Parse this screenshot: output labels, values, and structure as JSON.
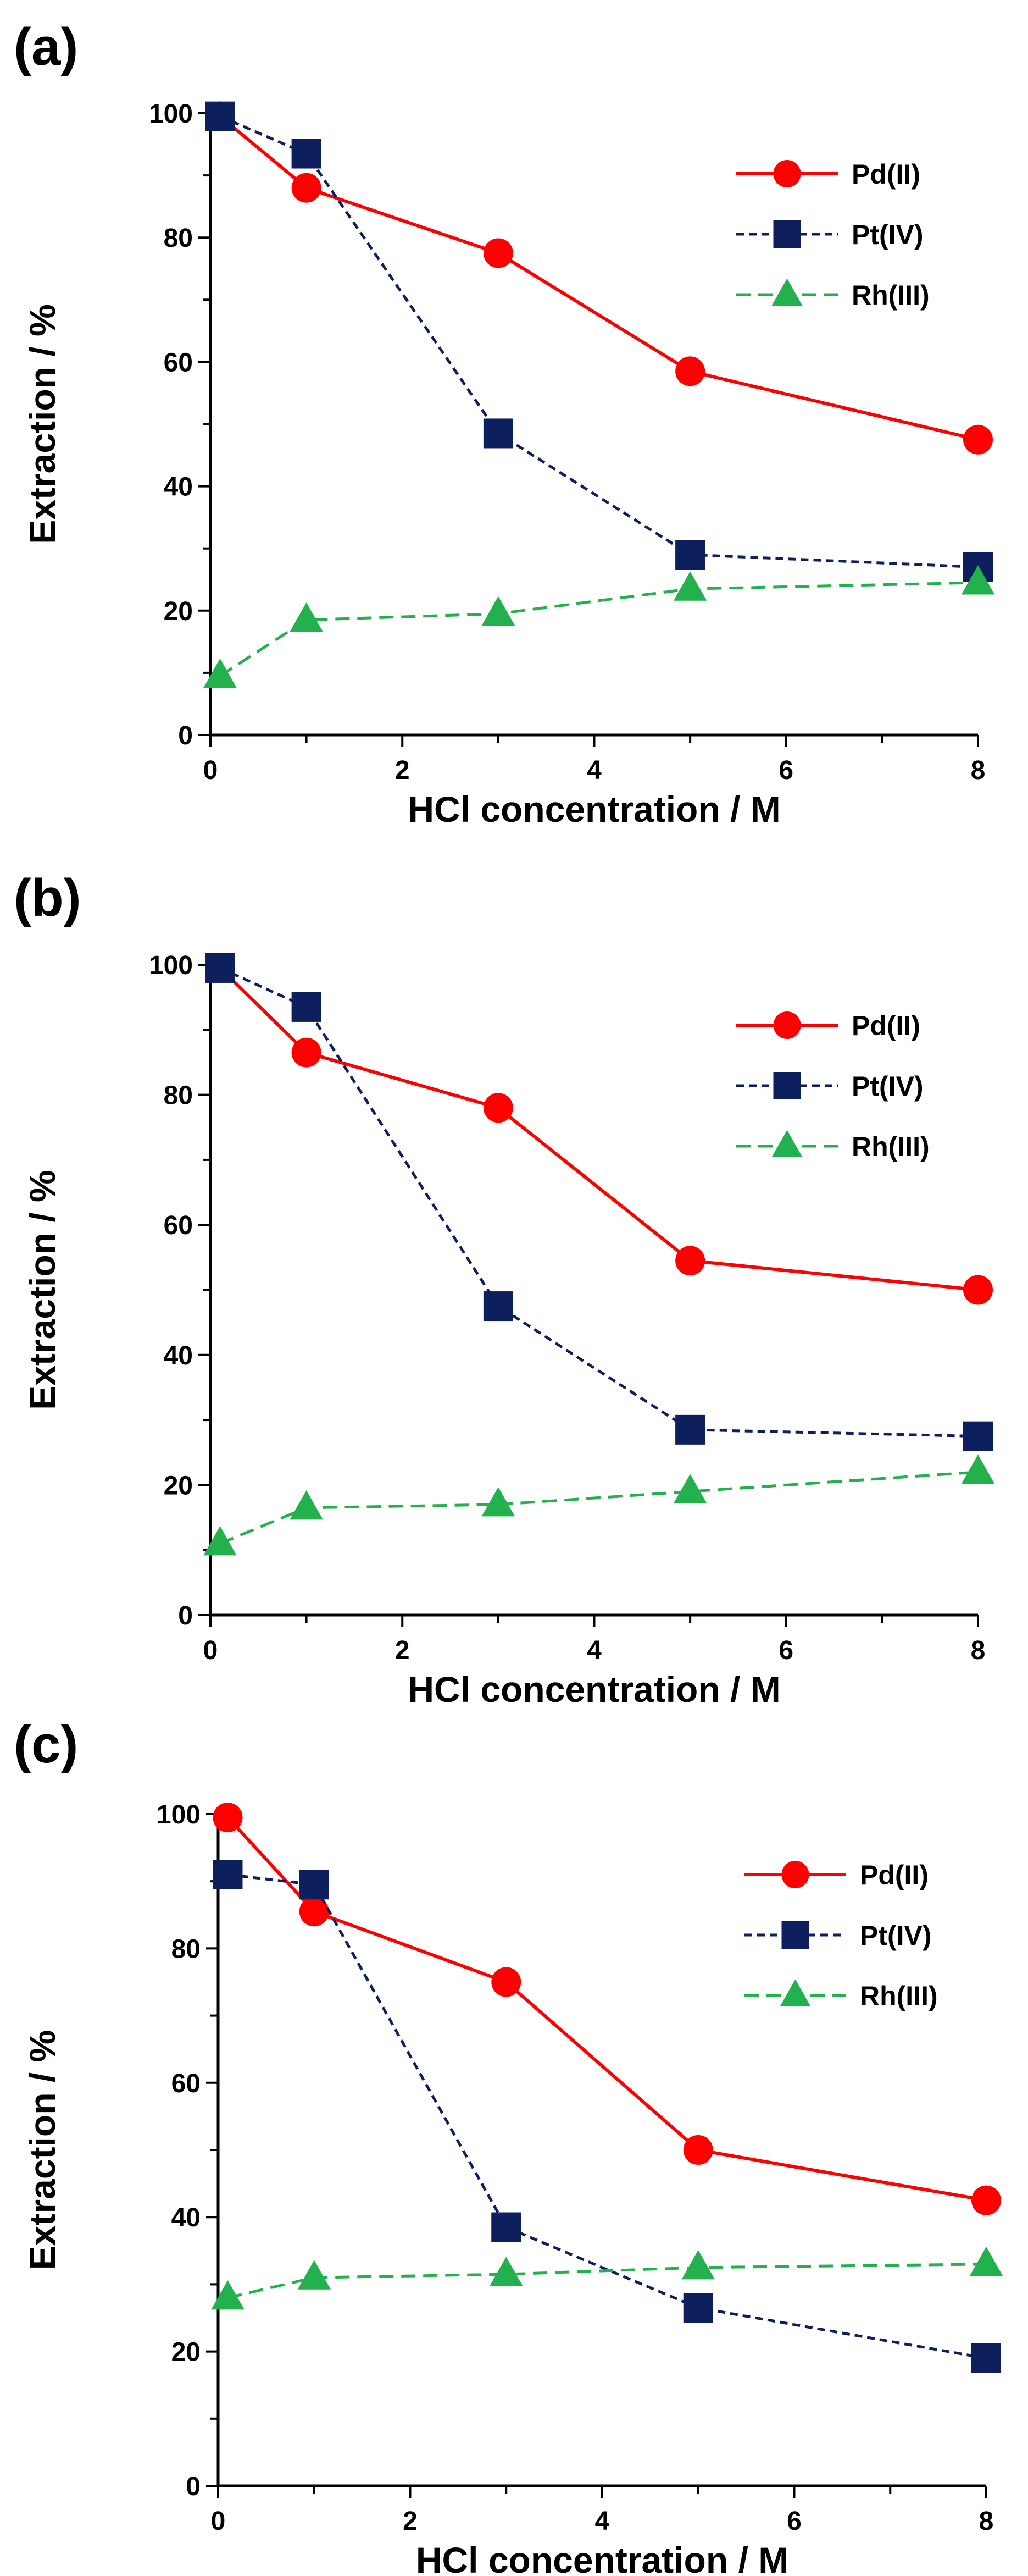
{
  "chart_data": [
    {
      "type": "line",
      "panel_label": "(a)",
      "xlabel": "HCl concentration / M",
      "ylabel": "Extraction / %",
      "xlim": [
        0,
        8
      ],
      "ylim": [
        0,
        100
      ],
      "xticks": [
        "0",
        "2",
        "4",
        "6",
        "8"
      ],
      "yticks": [
        "0",
        "20",
        "40",
        "60",
        "80",
        "100"
      ],
      "legend_position": "top-right",
      "x": [
        0.1,
        1,
        3,
        5,
        8
      ],
      "series": [
        {
          "name": "Pd(II)",
          "values": [
            99.5,
            88,
            77.5,
            58.5,
            47.5
          ],
          "color": "#ff0000",
          "marker": "circle",
          "dash": "solid"
        },
        {
          "name": "Pt(IV)",
          "values": [
            99.5,
            93.5,
            48.5,
            29,
            27
          ],
          "color": "#0d1f5c",
          "marker": "square",
          "dash": "dotted"
        },
        {
          "name": "Rh(III)",
          "values": [
            9.5,
            18.5,
            19.5,
            23.5,
            24.5
          ],
          "color": "#22b14c",
          "marker": "triangle",
          "dash": "dashed"
        }
      ]
    },
    {
      "type": "line",
      "panel_label": "(b)",
      "xlabel": "HCl concentration / M",
      "ylabel": "Extraction / %",
      "xlim": [
        0,
        8
      ],
      "ylim": [
        0,
        100
      ],
      "xticks": [
        "0",
        "2",
        "4",
        "6",
        "8"
      ],
      "yticks": [
        "0",
        "20",
        "40",
        "60",
        "80",
        "100"
      ],
      "legend_position": "top-right",
      "x": [
        0.1,
        1,
        3,
        5,
        8
      ],
      "series": [
        {
          "name": "Pd(II)",
          "values": [
            99.5,
            86.5,
            78,
            54.5,
            50
          ],
          "color": "#ff0000",
          "marker": "circle",
          "dash": "solid"
        },
        {
          "name": "Pt(IV)",
          "values": [
            99.5,
            93.5,
            47.5,
            28.5,
            27.5
          ],
          "color": "#0d1f5c",
          "marker": "square",
          "dash": "dotted"
        },
        {
          "name": "Rh(III)",
          "values": [
            11,
            16.5,
            17,
            19,
            22
          ],
          "color": "#22b14c",
          "marker": "triangle",
          "dash": "dashed"
        }
      ]
    },
    {
      "type": "line",
      "panel_label": "(c)",
      "xlabel": "HCl concentration / M",
      "ylabel": "Extraction / %",
      "xlim": [
        0,
        8
      ],
      "ylim": [
        0,
        100
      ],
      "xticks": [
        "0",
        "2",
        "4",
        "6",
        "8"
      ],
      "yticks": [
        "0",
        "20",
        "40",
        "60",
        "80",
        "100"
      ],
      "legend_position": "top-right",
      "x": [
        0.1,
        1,
        3,
        5,
        8
      ],
      "series": [
        {
          "name": "Pd(II)",
          "values": [
            99.5,
            85.5,
            75,
            50,
            42.5
          ],
          "color": "#ff0000",
          "marker": "circle",
          "dash": "solid"
        },
        {
          "name": "Pt(IV)",
          "values": [
            91,
            89.5,
            38.5,
            26.5,
            19
          ],
          "color": "#0d1f5c",
          "marker": "square",
          "dash": "dotted"
        },
        {
          "name": "Rh(III)",
          "values": [
            28,
            31,
            31.5,
            32.5,
            33
          ],
          "color": "#22b14c",
          "marker": "triangle",
          "dash": "dashed"
        }
      ]
    }
  ]
}
